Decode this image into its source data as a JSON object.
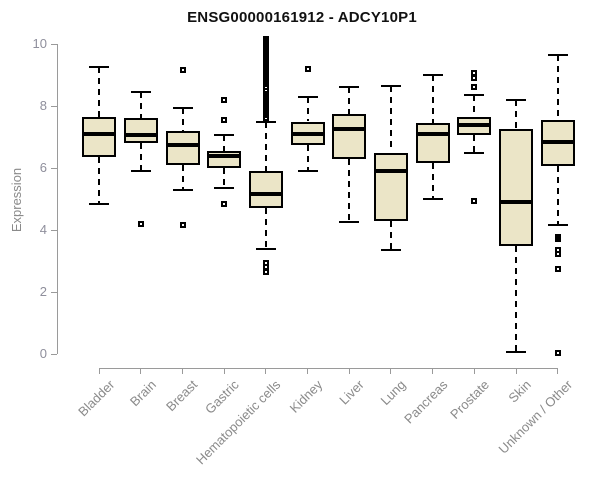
{
  "title": "ENSG00000161912 - ADCY10P1",
  "chart_data": {
    "type": "boxplot",
    "title": "ENSG00000161912 - ADCY10P1",
    "xlabel": "",
    "ylabel": "Expression",
    "ylim": [
      0,
      10
    ],
    "yticks": [
      0,
      2,
      4,
      6,
      8,
      10
    ],
    "grid": false,
    "legend": "none",
    "categories": [
      "Bladder",
      "Brain",
      "Breast",
      "Gastric",
      "Hematopoietic cells",
      "Kidney",
      "Liver",
      "Lung",
      "Pancreas",
      "Prostate",
      "Skin",
      "Unknown / Other"
    ],
    "series": [
      {
        "name": "Bladder",
        "low": 4.85,
        "q1": 6.35,
        "median": 7.1,
        "q3": 7.65,
        "high": 9.25,
        "outliers": []
      },
      {
        "name": "Brain",
        "low": 5.9,
        "q1": 6.8,
        "median": 7.05,
        "q3": 7.6,
        "high": 8.45,
        "outliers": [
          4.2
        ]
      },
      {
        "name": "Breast",
        "low": 5.3,
        "q1": 6.1,
        "median": 6.75,
        "q3": 7.2,
        "high": 7.95,
        "outliers": [
          9.15,
          4.15
        ]
      },
      {
        "name": "Gastric",
        "low": 5.35,
        "q1": 6.0,
        "median": 6.4,
        "q3": 6.55,
        "high": 7.05,
        "outliers": [
          8.2,
          7.55,
          4.85
        ]
      },
      {
        "name": "Hematopoietic cells",
        "low": 3.4,
        "q1": 4.7,
        "median": 5.15,
        "q3": 5.9,
        "high": 7.5,
        "outliers": [
          10.15,
          10.1,
          10.05,
          10.0,
          9.95,
          9.9,
          9.85,
          9.8,
          9.75,
          9.7,
          9.65,
          9.6,
          9.55,
          9.5,
          9.45,
          9.4,
          9.35,
          9.3,
          9.25,
          9.2,
          9.15,
          9.1,
          9.05,
          9.0,
          8.9,
          8.8,
          8.7,
          8.6,
          8.5,
          8.4,
          8.3,
          8.2,
          8.1,
          8.0,
          7.9,
          7.8,
          7.7,
          7.6,
          2.95,
          2.8,
          2.65
        ]
      },
      {
        "name": "Kidney",
        "low": 5.9,
        "q1": 6.75,
        "median": 7.1,
        "q3": 7.5,
        "high": 8.3,
        "outliers": [
          9.2
        ]
      },
      {
        "name": "Liver",
        "low": 4.25,
        "q1": 6.3,
        "median": 7.25,
        "q3": 7.75,
        "high": 8.6,
        "outliers": []
      },
      {
        "name": "Lung",
        "low": 3.35,
        "q1": 4.3,
        "median": 5.9,
        "q3": 6.5,
        "high": 8.65,
        "outliers": []
      },
      {
        "name": "Pancreas",
        "low": 5.0,
        "q1": 6.15,
        "median": 7.1,
        "q3": 7.45,
        "high": 9.0,
        "outliers": []
      },
      {
        "name": "Prostate",
        "low": 6.5,
        "q1": 7.05,
        "median": 7.4,
        "q3": 7.65,
        "high": 8.35,
        "outliers": [
          9.05,
          8.9,
          8.6,
          4.95
        ]
      },
      {
        "name": "Skin",
        "low": 0.05,
        "q1": 3.5,
        "median": 4.9,
        "q3": 7.25,
        "high": 8.2,
        "outliers": []
      },
      {
        "name": "Unknown / Other",
        "low": 4.15,
        "q1": 6.05,
        "median": 6.85,
        "q3": 7.55,
        "high": 9.65,
        "outliers": [
          3.78,
          3.7,
          3.35,
          3.22,
          2.75,
          0.03
        ]
      }
    ],
    "colors": {
      "box_fill": "#ebe5c7",
      "box_border": "#000000",
      "median": "#000000",
      "whisker": "#000000",
      "axis": "#9a9a9a",
      "y_tick_label": "#8f8f9c",
      "category_label": "#8a8a8a",
      "title": "#111111",
      "background": "#ffffff"
    }
  }
}
